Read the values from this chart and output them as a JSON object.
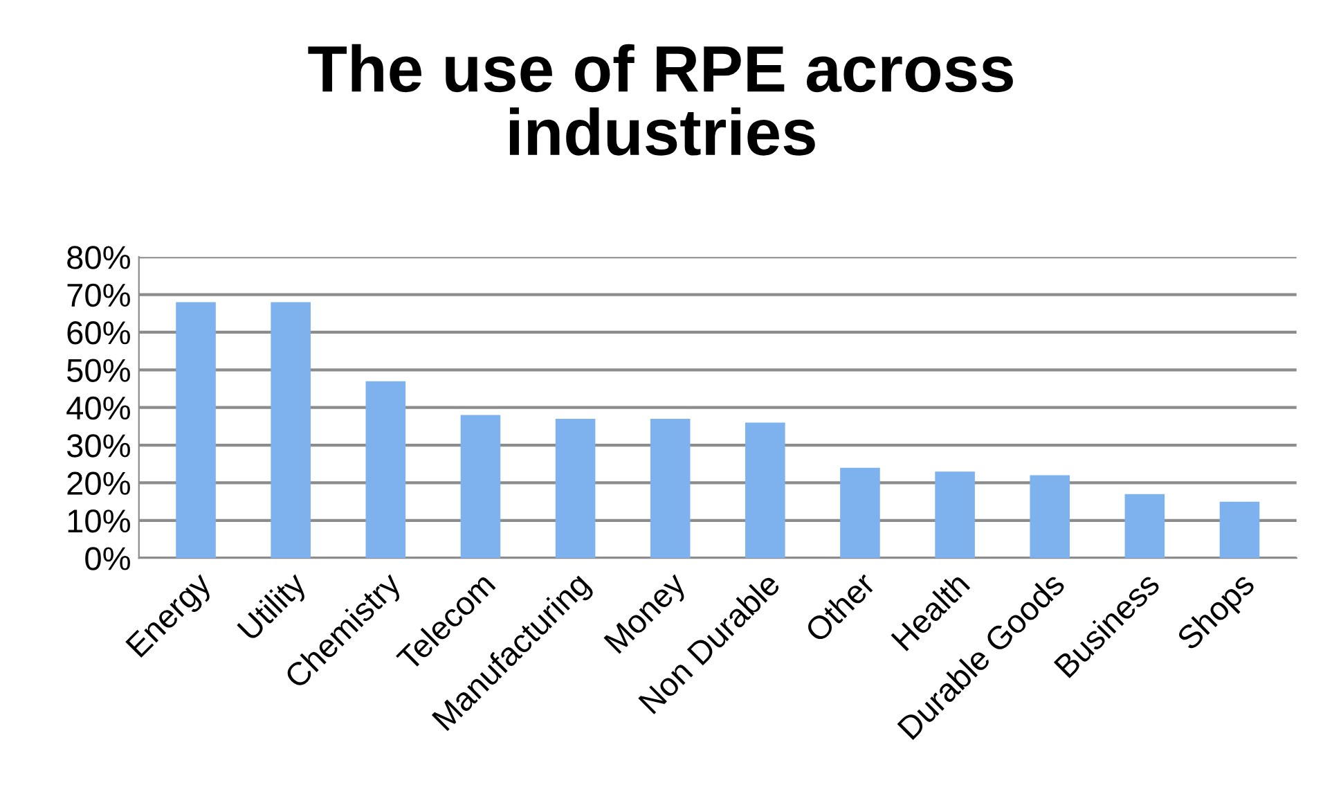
{
  "chart_data": {
    "type": "bar",
    "title": "The use of RPE across\nindustries",
    "categories": [
      "Energy",
      "Utility",
      "Chemistry",
      "Telecom",
      "Manufacturing",
      "Money",
      "Non Durable",
      "Other",
      "Health",
      "Durable Goods",
      "Business",
      "Shops"
    ],
    "values": [
      68,
      68,
      47,
      38,
      37,
      37,
      36,
      24,
      23,
      22,
      17,
      15
    ],
    "color": "#7db2ee",
    "ylim": [
      0,
      80
    ],
    "yticks": [
      {
        "value": 0,
        "label": "0%"
      },
      {
        "value": 10,
        "label": "10%"
      },
      {
        "value": 20,
        "label": "20%"
      },
      {
        "value": 30,
        "label": "30%"
      },
      {
        "value": 40,
        "label": "40%"
      },
      {
        "value": 50,
        "label": "50%"
      },
      {
        "value": 60,
        "label": "60%"
      },
      {
        "value": 70,
        "label": "70%"
      },
      {
        "value": 80,
        "label": "80%"
      }
    ],
    "grid": "y"
  }
}
